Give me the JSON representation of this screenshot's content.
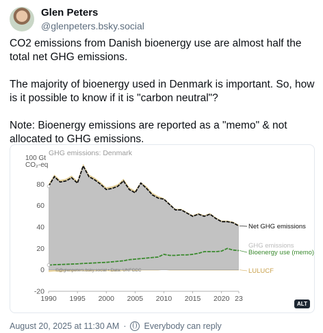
{
  "author": {
    "name": "Glen Peters",
    "handle": "@glenpeters.bsky.social"
  },
  "post": {
    "paragraphs": [
      "CO2 emissions from Danish bioenergy use are almost half the total net GHG emissions.",
      "The majority of bioenergy used in Denmark is important. So, how is it possible to know if it is \"carbon neutral\"?",
      "Note: Bioenergy emissions are reported as a \"memo\" & not allocated to GHG emissions."
    ],
    "timestamp": "August 20, 2025 at 11:30 AM",
    "separator": "·",
    "visibility": "Everybody can reply",
    "alt_badge": "ALT"
  },
  "chart_data": {
    "type": "area",
    "title": "GHG emissions: Denmark",
    "ylabel_line1": "100 Gt",
    "ylabel_line2": "CO₂-eq",
    "credit": "©@glenpeters.bsky.social • Data: UNFCCC",
    "x": [
      1990,
      1991,
      1992,
      1993,
      1994,
      1995,
      1996,
      1997,
      1998,
      1999,
      2000,
      2001,
      2002,
      2003,
      2004,
      2005,
      2006,
      2007,
      2008,
      2009,
      2010,
      2011,
      2012,
      2013,
      2014,
      2015,
      2016,
      2017,
      2018,
      2019,
      2020,
      2021,
      2022,
      2023
    ],
    "x_ticks": [
      "1990",
      "1995",
      "2000",
      "2005",
      "2010",
      "2015",
      "2020",
      "23"
    ],
    "x_tick_values": [
      1990,
      1995,
      2000,
      2005,
      2010,
      2015,
      2020,
      2023
    ],
    "y_ticks": [
      "-20",
      "0",
      "20",
      "40",
      "60",
      "80"
    ],
    "y_tick_values": [
      -20,
      0,
      20,
      40,
      60,
      80
    ],
    "ylim": [
      -20,
      100
    ],
    "series": [
      {
        "name": "Net GHG emissions",
        "color": "#111111",
        "values": [
          78,
          87,
          82,
          83,
          86,
          81,
          97,
          87,
          84,
          80,
          75,
          76,
          78,
          83,
          75,
          72,
          81,
          76,
          70,
          67,
          66,
          61,
          56,
          56,
          53,
          50,
          52,
          50,
          52,
          48,
          45,
          45,
          44,
          41
        ]
      },
      {
        "name": "GHG emissions",
        "color": "#c8c8c8",
        "values": [
          80,
          89,
          84,
          85,
          88,
          83,
          99,
          89,
          86,
          82,
          77,
          78,
          80,
          85,
          77,
          74,
          82,
          78,
          72,
          69,
          67,
          62,
          57,
          57,
          54,
          51,
          53,
          51,
          53,
          49,
          46,
          46,
          45,
          42
        ]
      },
      {
        "name": "Bioenergy use (memo)",
        "color": "#3a8a2e",
        "values": [
          4.5,
          4.8,
          5.0,
          5.2,
          5.4,
          5.6,
          6.0,
          6.2,
          6.5,
          6.8,
          7.0,
          7.5,
          8.0,
          8.5,
          9.5,
          10,
          10.5,
          11,
          11.5,
          12,
          14.5,
          13.5,
          13.5,
          14,
          14,
          14.5,
          15.5,
          17,
          17,
          17,
          17.5,
          20,
          18.5,
          18
        ]
      },
      {
        "name": "LULUCF",
        "color": "#d9b56a",
        "values": [
          -2,
          -1.5,
          -2,
          -1,
          -1.5,
          -1,
          -1,
          -1.5,
          -1,
          -1,
          -1,
          -1.5,
          -1,
          -1,
          -0.5,
          -1,
          -0.5,
          -0.5,
          -0.5,
          -0.5,
          0,
          -0.5,
          -0.5,
          -0.5,
          -0.5,
          -0.5,
          -0.5,
          -0.5,
          -0.5,
          -0.5,
          -0.5,
          -0.5,
          -0.5,
          -0.5
        ]
      }
    ],
    "legend_placement": "right"
  }
}
